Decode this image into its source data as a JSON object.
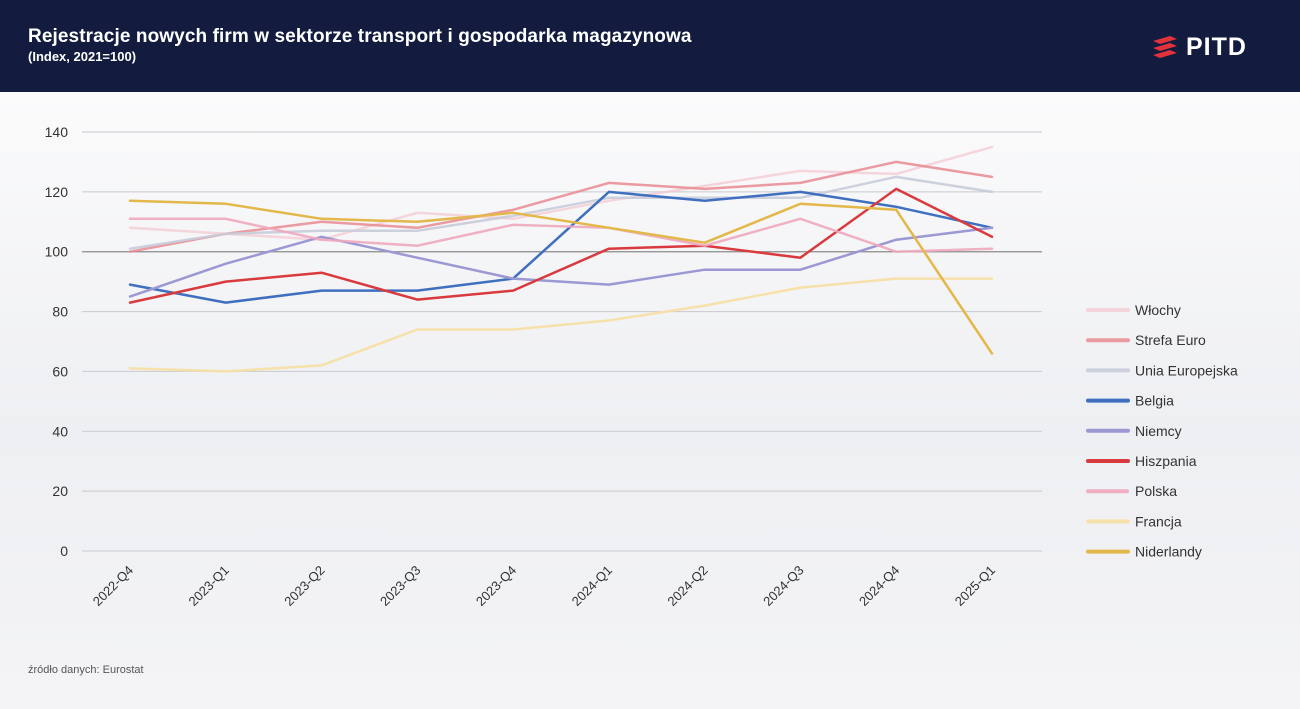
{
  "header": {
    "title": "Rejestracje nowych firm w sektorze transport i gospodarka magazynowa",
    "subtitle": "(Index, 2021=100)",
    "logo_text": "PITD"
  },
  "source": {
    "label": "źródło danych:",
    "value": "Eurostat"
  },
  "colors": {
    "header_bg": "#131c3f",
    "logo_accent": "#e2323c"
  },
  "chart_data": {
    "type": "line",
    "categories": [
      "2022-Q4",
      "2023-Q1",
      "2023-Q2",
      "2023-Q3",
      "2023-Q4",
      "2024-Q1",
      "2024-Q2",
      "2024-Q3",
      "2024-Q4",
      "2025-Q1"
    ],
    "ylim": [
      0,
      140
    ],
    "yticks": [
      0,
      20,
      40,
      60,
      80,
      100,
      120,
      140
    ],
    "grid": true,
    "legend_position": "right",
    "series": [
      {
        "name": "Włochy",
        "color": "#f3c9d1",
        "width": 2.5,
        "opacity": 0.75,
        "dash": "",
        "values": [
          108,
          106,
          104,
          113,
          111,
          117,
          122,
          127,
          126,
          135
        ]
      },
      {
        "name": "Strefa Euro",
        "color": "#e88a91",
        "width": 2.5,
        "opacity": 0.85,
        "dash": "",
        "values": [
          100,
          106,
          110,
          108,
          114,
          123,
          121,
          123,
          130,
          125
        ]
      },
      {
        "name": "Unia Europejska",
        "color": "#c8ccd9",
        "width": 2.5,
        "opacity": 0.9,
        "dash": "",
        "values": [
          101,
          106,
          107,
          107,
          112,
          118,
          118,
          118,
          125,
          120
        ]
      },
      {
        "name": "Belgia",
        "color": "#3f6fbf",
        "width": 2.5,
        "opacity": 1,
        "dash": "",
        "values": [
          89,
          83,
          87,
          87,
          91,
          120,
          117,
          120,
          115,
          108
        ]
      },
      {
        "name": "Niemcy",
        "color": "#9b98d3",
        "width": 2.5,
        "opacity": 1,
        "dash": "",
        "values": [
          85,
          96,
          105,
          98,
          91,
          89,
          94,
          94,
          104,
          108
        ]
      },
      {
        "name": "Hiszpania",
        "color": "#d83a3e",
        "width": 2.5,
        "opacity": 1,
        "dash": "",
        "values": [
          83,
          90,
          93,
          84,
          87,
          101,
          102,
          98,
          121,
          105
        ]
      },
      {
        "name": "Polska",
        "color": "#f0a9bc",
        "width": 2.5,
        "opacity": 0.9,
        "dash": "2 1",
        "values": [
          111,
          111,
          104,
          102,
          109,
          108,
          102,
          111,
          100,
          101
        ]
      },
      {
        "name": "Francja",
        "color": "#f7dfa6",
        "width": 2.5,
        "opacity": 0.95,
        "dash": "",
        "values": [
          61,
          60,
          62,
          74,
          74,
          77,
          82,
          88,
          91,
          91
        ]
      },
      {
        "name": "Niderlandy",
        "color": "#e3b84a",
        "width": 2.5,
        "opacity": 1,
        "dash": "",
        "values": [
          117,
          116,
          111,
          110,
          113,
          108,
          103,
          116,
          114,
          66
        ]
      }
    ]
  }
}
